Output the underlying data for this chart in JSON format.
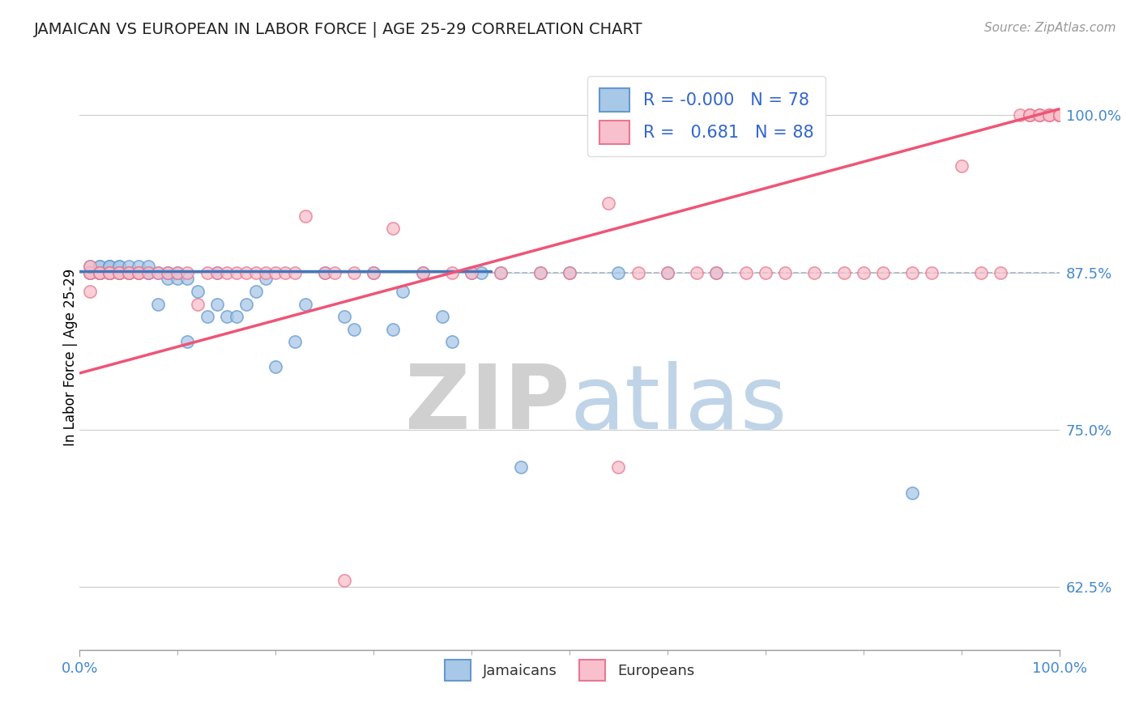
{
  "title": "JAMAICAN VS EUROPEAN IN LABOR FORCE | AGE 25-29 CORRELATION CHART",
  "source_text": "Source: ZipAtlas.com",
  "ylabel": "In Labor Force | Age 25-29",
  "xlim": [
    0.0,
    1.0
  ],
  "ylim": [
    0.575,
    1.04
  ],
  "yticks": [
    0.625,
    0.75,
    0.875,
    1.0
  ],
  "ytick_labels": [
    "62.5%",
    "75.0%",
    "87.5%",
    "100.0%"
  ],
  "xtick_labels": [
    "0.0%",
    "100.0%"
  ],
  "blue_R": "-0.000",
  "blue_N": "78",
  "pink_R": "0.681",
  "pink_N": "88",
  "blue_face_color": "#A8C8E8",
  "blue_edge_color": "#6699CC",
  "pink_face_color": "#F8C0CC",
  "pink_edge_color": "#E87890",
  "blue_line_color": "#4477BB",
  "pink_line_color": "#EE5577",
  "dashed_line_color": "#AABBCC",
  "dashed_line_y": 0.875,
  "legend_jamaicans": "Jamaicans",
  "legend_europeans": "Europeans",
  "blue_line_x_end": 0.42,
  "blue_line_y_val": 0.876,
  "pink_line_x_start": 0.0,
  "pink_line_y_start": 0.795,
  "pink_line_x_end": 1.0,
  "pink_line_y_end": 1.005,
  "blue_x": [
    0.01,
    0.01,
    0.01,
    0.01,
    0.02,
    0.02,
    0.02,
    0.02,
    0.02,
    0.02,
    0.02,
    0.02,
    0.02,
    0.02,
    0.03,
    0.03,
    0.03,
    0.03,
    0.03,
    0.03,
    0.03,
    0.03,
    0.03,
    0.04,
    0.04,
    0.04,
    0.04,
    0.04,
    0.04,
    0.05,
    0.05,
    0.05,
    0.05,
    0.06,
    0.06,
    0.06,
    0.07,
    0.07,
    0.07,
    0.08,
    0.08,
    0.09,
    0.09,
    0.1,
    0.1,
    0.11,
    0.11,
    0.12,
    0.13,
    0.14,
    0.14,
    0.15,
    0.16,
    0.17,
    0.18,
    0.19,
    0.2,
    0.22,
    0.23,
    0.25,
    0.27,
    0.28,
    0.3,
    0.32,
    0.33,
    0.35,
    0.37,
    0.38,
    0.4,
    0.41,
    0.43,
    0.45,
    0.47,
    0.5,
    0.55,
    0.6,
    0.65,
    0.85
  ],
  "blue_y": [
    0.875,
    0.875,
    0.875,
    0.88,
    0.875,
    0.875,
    0.875,
    0.875,
    0.875,
    0.875,
    0.875,
    0.875,
    0.88,
    0.88,
    0.875,
    0.875,
    0.875,
    0.875,
    0.875,
    0.875,
    0.88,
    0.88,
    0.88,
    0.875,
    0.875,
    0.875,
    0.88,
    0.88,
    0.875,
    0.875,
    0.875,
    0.875,
    0.88,
    0.875,
    0.875,
    0.88,
    0.875,
    0.875,
    0.88,
    0.85,
    0.875,
    0.87,
    0.875,
    0.87,
    0.875,
    0.82,
    0.87,
    0.86,
    0.84,
    0.875,
    0.85,
    0.84,
    0.84,
    0.85,
    0.86,
    0.87,
    0.8,
    0.82,
    0.85,
    0.875,
    0.84,
    0.83,
    0.875,
    0.83,
    0.86,
    0.875,
    0.84,
    0.82,
    0.875,
    0.875,
    0.875,
    0.72,
    0.875,
    0.875,
    0.875,
    0.875,
    0.875,
    0.7
  ],
  "pink_x": [
    0.01,
    0.01,
    0.01,
    0.01,
    0.02,
    0.02,
    0.02,
    0.03,
    0.03,
    0.03,
    0.04,
    0.04,
    0.05,
    0.05,
    0.06,
    0.06,
    0.07,
    0.08,
    0.09,
    0.1,
    0.11,
    0.12,
    0.13,
    0.14,
    0.15,
    0.16,
    0.17,
    0.18,
    0.19,
    0.2,
    0.21,
    0.22,
    0.23,
    0.25,
    0.26,
    0.28,
    0.3,
    0.32,
    0.35,
    0.38,
    0.4,
    0.43,
    0.47,
    0.5,
    0.54,
    0.57,
    0.6,
    0.63,
    0.65,
    0.68,
    0.7,
    0.72,
    0.75,
    0.78,
    0.8,
    0.82,
    0.85,
    0.87,
    0.9,
    0.92,
    0.94,
    0.96,
    0.97,
    0.97,
    0.97,
    0.98,
    0.98,
    0.98,
    0.99,
    0.99,
    0.99,
    1.0,
    1.0,
    1.0,
    1.0,
    1.0,
    1.0,
    1.0,
    1.0,
    1.0,
    1.0,
    1.0,
    1.0,
    1.0,
    1.0,
    1.0,
    0.55,
    0.27
  ],
  "pink_y": [
    0.875,
    0.875,
    0.88,
    0.86,
    0.875,
    0.875,
    0.875,
    0.875,
    0.875,
    0.875,
    0.875,
    0.875,
    0.875,
    0.875,
    0.875,
    0.875,
    0.875,
    0.875,
    0.875,
    0.875,
    0.875,
    0.85,
    0.875,
    0.875,
    0.875,
    0.875,
    0.875,
    0.875,
    0.875,
    0.875,
    0.875,
    0.875,
    0.92,
    0.875,
    0.875,
    0.875,
    0.875,
    0.91,
    0.875,
    0.875,
    0.875,
    0.875,
    0.875,
    0.875,
    0.93,
    0.875,
    0.875,
    0.875,
    0.875,
    0.875,
    0.875,
    0.875,
    0.875,
    0.875,
    0.875,
    0.875,
    0.875,
    0.875,
    0.96,
    0.875,
    0.875,
    1.0,
    1.0,
    1.0,
    1.0,
    1.0,
    1.0,
    1.0,
    1.0,
    1.0,
    1.0,
    1.0,
    1.0,
    1.0,
    1.0,
    1.0,
    1.0,
    1.0,
    1.0,
    1.0,
    1.0,
    1.0,
    1.0,
    1.0,
    1.0,
    1.0,
    0.72,
    0.63
  ]
}
